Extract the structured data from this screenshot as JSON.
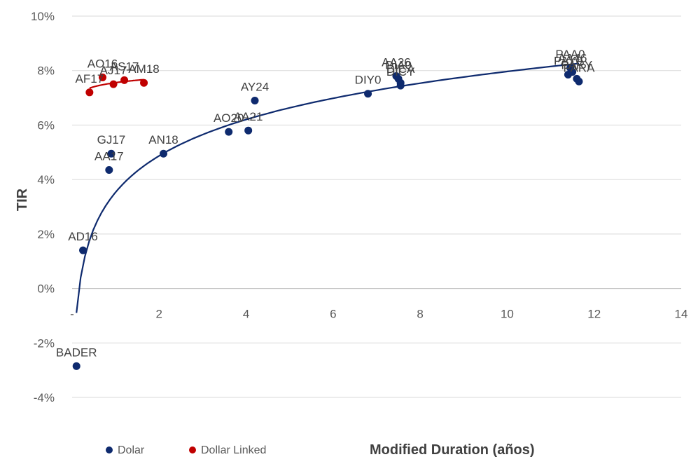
{
  "chart_data": {
    "type": "scatter",
    "xlabel": "Modified Duration (años)",
    "ylabel": "TIR",
    "xlim": [
      0,
      14
    ],
    "ylim": [
      -4,
      10
    ],
    "x_ticks": [
      {
        "value": 0,
        "label": "-"
      },
      {
        "value": 2,
        "label": "2"
      },
      {
        "value": 4,
        "label": "4"
      },
      {
        "value": 6,
        "label": "6"
      },
      {
        "value": 8,
        "label": "8"
      },
      {
        "value": 10,
        "label": "10"
      },
      {
        "value": 12,
        "label": "12"
      },
      {
        "value": 14,
        "label": "14"
      }
    ],
    "y_ticks": [
      {
        "value": 10,
        "label": "10%"
      },
      {
        "value": 8,
        "label": "8%"
      },
      {
        "value": 6,
        "label": "6%"
      },
      {
        "value": 4,
        "label": "4%"
      },
      {
        "value": 2,
        "label": "2%"
      },
      {
        "value": 0,
        "label": "0%"
      },
      {
        "value": -2,
        "label": "-2%"
      },
      {
        "value": -4,
        "label": "-4%"
      }
    ],
    "grid": "horizontal",
    "legend_position": "bottom-left",
    "series": [
      {
        "name": "Dolar",
        "color": "#0e2a6e",
        "trendline": "logarithmic",
        "points": [
          {
            "label": "BADER",
            "x": 0.1,
            "y": -2.85
          },
          {
            "label": "AD16",
            "x": 0.25,
            "y": 1.4
          },
          {
            "label": "AA17",
            "x": 0.85,
            "y": 4.35
          },
          {
            "label": "GJ17",
            "x": 0.9,
            "y": 4.95
          },
          {
            "label": "AN18",
            "x": 2.1,
            "y": 4.95
          },
          {
            "label": "AO20",
            "x": 3.6,
            "y": 5.75
          },
          {
            "label": "AA21",
            "x": 4.05,
            "y": 5.8
          },
          {
            "label": "AY24",
            "x": 4.2,
            "y": 6.9
          },
          {
            "label": "DIY0",
            "x": 6.8,
            "y": 7.15
          },
          {
            "label": "AA26",
            "x": 7.45,
            "y": 7.8
          },
          {
            "label": "DIA0",
            "x": 7.5,
            "y": 7.7
          },
          {
            "label": "DICA",
            "x": 7.55,
            "y": 7.55
          },
          {
            "label": "DICY",
            "x": 7.55,
            "y": 7.45
          },
          {
            "label": "PAY0",
            "x": 11.4,
            "y": 7.85
          },
          {
            "label": "PAA0",
            "x": 11.45,
            "y": 8.1
          },
          {
            "label": "AA46",
            "x": 11.5,
            "y": 7.95
          },
          {
            "label": "PARY",
            "x": 11.6,
            "y": 7.7
          },
          {
            "label": "PARA",
            "x": 11.65,
            "y": 7.6
          }
        ]
      },
      {
        "name": "Dollar Linked",
        "color": "#c00000",
        "trendline": "logarithmic",
        "points": [
          {
            "label": "AF17",
            "x": 0.4,
            "y": 7.2
          },
          {
            "label": "AO16",
            "x": 0.7,
            "y": 7.75
          },
          {
            "label": "AJ17",
            "x": 0.95,
            "y": 7.5
          },
          {
            "label": "AS17",
            "x": 1.2,
            "y": 7.65
          },
          {
            "label": "AM18",
            "x": 1.65,
            "y": 7.55
          }
        ]
      }
    ]
  }
}
